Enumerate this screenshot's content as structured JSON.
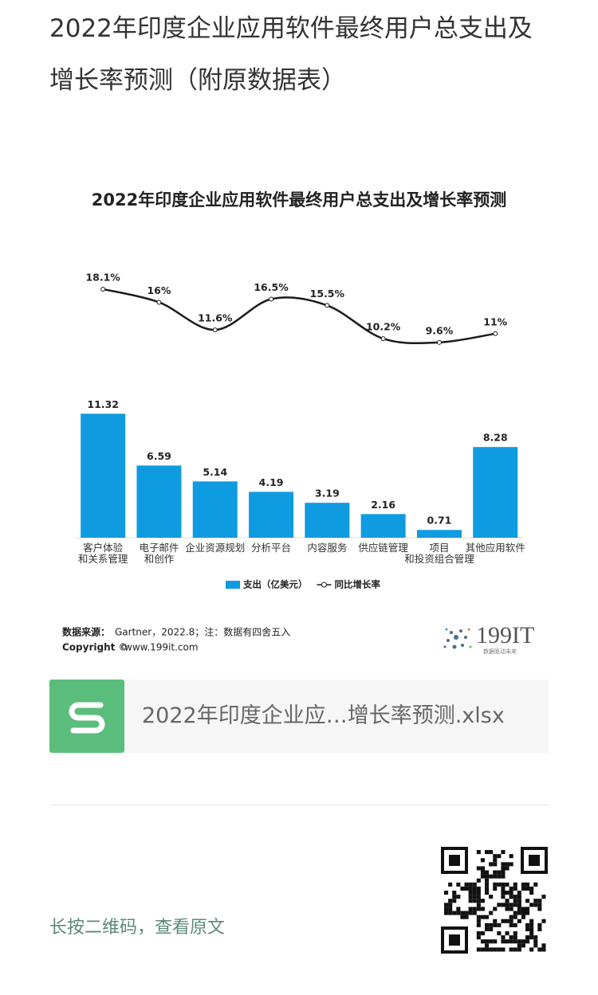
{
  "page_title": "2022年印度企业应用软件最终用户总支出及增长率预测（附原数据表）",
  "chart_data": {
    "type": "bar",
    "title": "2022年印度企业应用软件最终用户总支出及增长率预测",
    "categories": [
      "客户体验\n和关系管理",
      "电子邮件\n和创作",
      "企业资源规划",
      "分析平台",
      "内容服务",
      "供应链管理",
      "项目\n和投资组合管理",
      "其他应用软件"
    ],
    "series": [
      {
        "name": "支出（亿美元）",
        "type": "bar",
        "color": "#0f9be0",
        "values": [
          11.32,
          6.59,
          5.14,
          4.19,
          3.19,
          2.16,
          0.71,
          8.28
        ]
      },
      {
        "name": "同比增长率",
        "type": "line",
        "axis": "y2",
        "color": "#1a1a1a",
        "values": [
          18.1,
          16,
          11.6,
          16.5,
          15.5,
          10.2,
          9.6,
          11
        ],
        "value_labels": [
          "18.1%",
          "16%",
          "11.6%",
          "16.5%",
          "15.5%",
          "10.2%",
          "9.6%",
          "11%"
        ]
      }
    ],
    "ylim": [
      0,
      12
    ],
    "y2lim": [
      5,
      20
    ],
    "legend": "bottom"
  },
  "source_label": "数据来源：",
  "source": "Gartner，2022.8；注：数据有四舍五入",
  "copyright_label": "Copyright ©",
  "copyright": "www.199it.com",
  "logo": "199IT",
  "logo_slogan": "数据驱动未来",
  "attachment": "2022年印度企业应…增长率预测.xlsx",
  "footer": "长按二维码，查看原文"
}
